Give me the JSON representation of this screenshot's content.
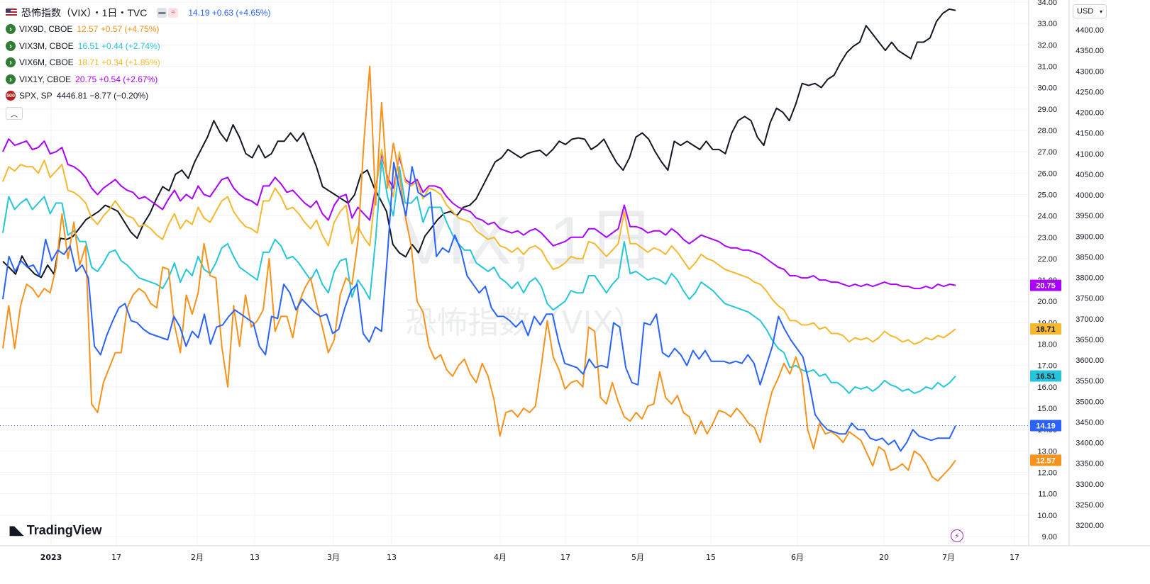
{
  "header": {
    "title": "恐怖指数（VIX）・1日・TVC",
    "main_values": "14.19 +0.63 (+4.65%)",
    "currency": "USD"
  },
  "watermark": {
    "line1": "VIX, 1日",
    "line2": "恐怖指数（VIX）"
  },
  "brand": "TradingView",
  "legend": [
    {
      "name": "VIX9D, CBOE",
      "values": "12.57 +0.57 (+4.75%)",
      "color": "#f7931a"
    },
    {
      "name": "VIX3M, CBOE",
      "values": "16.51 +0.44 (+2.74%)",
      "color": "#26c6da"
    },
    {
      "name": "VIX6M, CBOE",
      "values": "18.71 +0.34 (+1.85%)",
      "color": "#f5b82e"
    },
    {
      "name": "VIX1Y, CBOE",
      "values": "20.75 +0.54 (+2.67%)",
      "color": "#aa00ff"
    },
    {
      "name": "SPX, SP",
      "values": "4446.81 −8.77 (−0.20%)",
      "color": "#131722",
      "icon": "500"
    }
  ],
  "chart_data": {
    "type": "line",
    "x_ticks": [
      "2023",
      "17",
      "2月",
      "13",
      "3月",
      "13",
      "4月",
      "17",
      "5月",
      "15",
      "6月",
      "20",
      "7月",
      "17"
    ],
    "y_left_ticks": [
      "34.00",
      "33.00",
      "32.00",
      "31.00",
      "30.00",
      "29.00",
      "28.00",
      "27.00",
      "26.00",
      "25.00",
      "24.00",
      "23.00",
      "22.00",
      "21.00",
      "20.00",
      "19.00",
      "18.00",
      "17.00",
      "16.00",
      "15.00",
      "14.00",
      "13.00",
      "12.00",
      "11.00",
      "10.00",
      "9.00"
    ],
    "y_right_ticks": [
      "4400.00",
      "4350.00",
      "4300.00",
      "4250.00",
      "4200.00",
      "4150.00",
      "4100.00",
      "4050.00",
      "4000.00",
      "3950.00",
      "3900.00",
      "3850.00",
      "3800.00",
      "3750.00",
      "3700.00",
      "3650.00",
      "3600.00",
      "3550.00",
      "3500.00",
      "3450.00",
      "3400.00",
      "3350.00",
      "3300.00",
      "3250.00",
      "3200.00"
    ],
    "y_left_range": [
      9,
      34
    ],
    "y_right_range": [
      3200,
      4400
    ],
    "last_value_labels": [
      {
        "text": "20.75",
        "value": 20.75,
        "color": "#aa00ff"
      },
      {
        "text": "18.71",
        "value": 18.71,
        "color": "#f5b82e"
      },
      {
        "text": "16.51",
        "value": 16.51,
        "color": "#26c6da"
      },
      {
        "text": "14.19",
        "value": 14.19,
        "color": "#2962ff"
      },
      {
        "text": "12.57",
        "value": 12.57,
        "color": "#f7931a"
      }
    ],
    "series": [
      {
        "name": "VIX",
        "axis": "left",
        "color": "#2962ff",
        "values": [
          20.1,
          22.1,
          21.4,
          21.9,
          21.6,
          21.7,
          21.2,
          22.9,
          21.9,
          22.4,
          22.2,
          22.6,
          21.4,
          21.7,
          21.1,
          17.9,
          17.5,
          18.4,
          19.1,
          19.7,
          19.9,
          19.1,
          19.0,
          18.7,
          18.5,
          18.4,
          18.3,
          18.2,
          19.3,
          18.8,
          17.9,
          18.6,
          18.3,
          19.4,
          18.0,
          18.8,
          18.9,
          19.3,
          19.6,
          19.4,
          19.2,
          19.0,
          17.9,
          17.5,
          19.3,
          19.2,
          20.8,
          20.4,
          19.6,
          20.1,
          19.8,
          19.5,
          19.3,
          19.4,
          18.5,
          18.7,
          19.7,
          20.5,
          20.8,
          18.5,
          18.1,
          18.8,
          18.6,
          22.3,
          26.5,
          25.2,
          24.0,
          26.3,
          25.1,
          24.9,
          25.1,
          22.1,
          22.5,
          22.3,
          23.1,
          22.4,
          21.2,
          20.8,
          20.4,
          20.7,
          19.7,
          19.3,
          19.3,
          19.1,
          18.8,
          19.1,
          18.4,
          19.3,
          18.9,
          19.4,
          19.4,
          18.1,
          17.1,
          17.0,
          16.9,
          16.6,
          17.3,
          16.9,
          17.0,
          16.9,
          19.0,
          18.8,
          16.9,
          16.2,
          16.1,
          19.0,
          18.9,
          19.4,
          17.6,
          17.4,
          17.8,
          17.5,
          17.0,
          17.7,
          17.3,
          17.7,
          17.2,
          17.2,
          17.2,
          17.1,
          17.2,
          17.1,
          17.5,
          17.1,
          16.1,
          17.0,
          17.9,
          19.3,
          18.7,
          18.2,
          17.8,
          17.4,
          16.2,
          14.7,
          14.3,
          14.0,
          13.9,
          13.8,
          13.8,
          14.3,
          14.0,
          14.0,
          13.6,
          13.5,
          13.6,
          13.3,
          13.5,
          13.0,
          13.4,
          14.0,
          13.7,
          13.6,
          13.5,
          13.6,
          13.6,
          13.6,
          14.19
        ]
      },
      {
        "name": "VIX9D, CBOE",
        "axis": "left",
        "color": "#f7931a",
        "values": [
          17.8,
          19.8,
          17.8,
          19.8,
          20.8,
          20.6,
          20.2,
          20.6,
          20.4,
          21.6,
          24.1,
          22.0,
          23.7,
          21.7,
          22.6,
          15.2,
          14.8,
          16.2,
          16.9,
          17.6,
          17.6,
          19.7,
          20.3,
          20.6,
          20.4,
          19.9,
          19.7,
          21.6,
          21.5,
          18.9,
          17.6,
          20.3,
          19.4,
          20.4,
          22.7,
          21.2,
          21.1,
          17.9,
          16.0,
          19.8,
          17.9,
          20.3,
          18.8,
          19.1,
          19.6,
          22.0,
          18.6,
          19.3,
          19.3,
          18.3,
          19.9,
          20.6,
          21.1,
          19.9,
          18.8,
          17.6,
          18.2,
          20.3,
          21.1,
          20.8,
          22.8,
          27.4,
          31.0,
          24.5,
          29.3,
          25.3,
          27.4,
          25.9,
          24.0,
          22.6,
          20.0,
          19.5,
          17.9,
          17.3,
          17.5,
          16.8,
          16.5,
          17.0,
          17.3,
          16.6,
          16.2,
          17.1,
          16.5,
          15.4,
          13.7,
          14.8,
          14.9,
          14.6,
          15.0,
          14.8,
          15.1,
          17.0,
          19.1,
          17.4,
          16.8,
          15.9,
          16.2,
          16.3,
          16.0,
          18.8,
          18.6,
          15.5,
          15.2,
          16.2,
          15.3,
          14.6,
          14.4,
          14.8,
          14.5,
          15.1,
          15.2,
          16.7,
          15.5,
          15.2,
          15.6,
          14.8,
          14.6,
          13.8,
          14.4,
          13.8,
          14.3,
          14.9,
          14.8,
          14.6,
          15.0,
          14.7,
          14.3,
          14.1,
          13.4,
          14.7,
          15.8,
          16.4,
          17.1,
          16.6,
          17.4,
          16.6,
          14.0,
          13.1,
          14.3,
          13.8,
          13.9,
          13.7,
          13.4,
          13.9,
          13.7,
          13.5,
          12.9,
          12.3,
          13.2,
          13.0,
          12.1,
          12.2,
          12.4,
          12.1,
          13.0,
          12.8,
          12.4,
          11.8,
          11.6,
          11.9,
          12.2,
          12.57
        ]
      },
      {
        "name": "VIX3M, CBOE",
        "axis": "left",
        "color": "#26c6da",
        "values": [
          23.2,
          24.9,
          24.3,
          24.6,
          24.8,
          24.3,
          24.6,
          24.9,
          24.1,
          24.6,
          24.6,
          23.1,
          23.3,
          22.8,
          22.8,
          21.6,
          21.4,
          21.8,
          22.3,
          22.4,
          21.9,
          21.7,
          21.4,
          21.1,
          21.0,
          20.9,
          20.8,
          20.6,
          21.1,
          21.8,
          20.9,
          21.5,
          21.2,
          22.1,
          21.5,
          21.3,
          21.8,
          22.5,
          22.7,
          22.1,
          21.6,
          21.4,
          21.2,
          21.0,
          22.3,
          22.3,
          22.9,
          22.6,
          22.0,
          22.1,
          21.8,
          21.4,
          21.0,
          21.5,
          20.8,
          20.4,
          21.4,
          21.9,
          22.0,
          20.2,
          21.0,
          20.6,
          20.1,
          22.9,
          26.6,
          24.9,
          24.0,
          26.3,
          24.6,
          24.6,
          24.9,
          23.7,
          24.4,
          24.4,
          24.4,
          23.7,
          23.1,
          22.7,
          22.4,
          22.4,
          21.8,
          21.6,
          21.4,
          21.6,
          21.1,
          20.9,
          20.6,
          20.9,
          20.4,
          20.9,
          21.1,
          20.7,
          19.9,
          19.6,
          19.8,
          20.0,
          20.5,
          20.4,
          20.4,
          21.2,
          21.2,
          20.8,
          20.4,
          20.8,
          21.1,
          22.8,
          21.3,
          21.4,
          21.2,
          21.0,
          21.1,
          21.0,
          20.8,
          21.3,
          21.0,
          20.5,
          20.1,
          20.4,
          20.9,
          20.7,
          20.5,
          20.2,
          19.9,
          19.8,
          19.7,
          19.6,
          19.5,
          19.3,
          19.1,
          18.7,
          18.2,
          17.8,
          17.6,
          16.9,
          17.0,
          16.8,
          16.7,
          16.8,
          16.5,
          16.6,
          16.2,
          16.2,
          16.0,
          15.7,
          16.0,
          15.9,
          16.0,
          15.8,
          16.0,
          16.3,
          16.1,
          16.0,
          15.8,
          15.9,
          15.7,
          15.8,
          16.0,
          15.9,
          16.2,
          16.0,
          16.2,
          16.51
        ]
      },
      {
        "name": "VIX6M, CBOE",
        "axis": "left",
        "color": "#f5b82e",
        "values": [
          25.6,
          26.3,
          26.1,
          26.4,
          26.3,
          26.3,
          26.0,
          26.6,
          25.8,
          26.1,
          26.4,
          25.2,
          25.1,
          24.9,
          24.6,
          23.9,
          23.6,
          24.0,
          24.3,
          24.7,
          24.3,
          24.0,
          23.9,
          23.5,
          23.6,
          23.4,
          23.1,
          22.9,
          23.6,
          24.1,
          23.4,
          23.8,
          23.6,
          24.4,
          23.9,
          23.7,
          24.2,
          24.7,
          24.9,
          24.2,
          23.8,
          23.5,
          23.4,
          23.2,
          24.7,
          24.7,
          25.3,
          24.9,
          24.3,
          24.4,
          24.1,
          23.7,
          23.4,
          23.8,
          23.1,
          22.6,
          23.7,
          24.2,
          24.5,
          22.7,
          23.5,
          23.0,
          22.6,
          25.2,
          27.1,
          25.7,
          24.9,
          27.0,
          25.6,
          25.4,
          25.6,
          24.8,
          25.3,
          25.2,
          25.0,
          24.5,
          24.2,
          23.9,
          23.8,
          23.7,
          23.3,
          23.1,
          22.9,
          23.0,
          22.6,
          22.5,
          22.3,
          22.5,
          22.2,
          22.5,
          22.6,
          22.4,
          21.9,
          21.5,
          21.6,
          21.8,
          22.1,
          22.0,
          22.0,
          22.8,
          22.7,
          22.4,
          22.1,
          22.4,
          22.7,
          24.2,
          22.7,
          22.7,
          22.5,
          22.3,
          22.5,
          22.4,
          22.2,
          22.6,
          22.3,
          21.9,
          21.5,
          21.8,
          22.2,
          22.0,
          21.9,
          21.7,
          21.5,
          21.4,
          21.3,
          21.2,
          21.1,
          20.9,
          20.8,
          20.5,
          20.1,
          19.8,
          19.6,
          19.1,
          19.1,
          18.9,
          18.9,
          19.0,
          18.7,
          18.8,
          18.5,
          18.5,
          18.4,
          18.1,
          18.3,
          18.2,
          18.3,
          18.1,
          18.3,
          18.6,
          18.4,
          18.3,
          18.1,
          18.2,
          18.0,
          18.1,
          18.3,
          18.2,
          18.4,
          18.3,
          18.5,
          18.71
        ]
      },
      {
        "name": "VIX1Y, CBOE",
        "axis": "left",
        "color": "#aa00ff",
        "values": [
          27.0,
          27.6,
          27.3,
          27.4,
          27.5,
          27.1,
          27.2,
          27.5,
          26.9,
          27.0,
          27.2,
          26.4,
          26.3,
          26.1,
          25.8,
          25.3,
          25.0,
          25.3,
          25.5,
          25.7,
          25.4,
          25.2,
          25.1,
          24.8,
          24.9,
          24.7,
          24.5,
          24.3,
          24.8,
          25.2,
          24.7,
          25.0,
          24.8,
          25.4,
          25.0,
          24.9,
          25.3,
          25.7,
          25.8,
          25.3,
          25.0,
          24.8,
          24.7,
          24.5,
          25.4,
          25.4,
          25.8,
          25.5,
          25.1,
          25.2,
          24.9,
          24.6,
          24.4,
          24.7,
          24.1,
          23.8,
          24.5,
          24.9,
          25.0,
          23.9,
          24.4,
          24.1,
          23.8,
          25.3,
          26.9,
          25.8,
          25.3,
          26.8,
          25.7,
          25.5,
          25.7,
          25.1,
          25.4,
          25.4,
          25.3,
          24.9,
          24.6,
          24.4,
          24.3,
          24.2,
          23.9,
          23.8,
          23.6,
          23.7,
          23.4,
          23.3,
          23.2,
          23.3,
          23.1,
          23.3,
          23.4,
          23.2,
          22.9,
          22.6,
          22.7,
          22.8,
          23.0,
          23.0,
          23.0,
          23.4,
          23.4,
          23.2,
          23.0,
          23.2,
          23.4,
          24.5,
          23.5,
          23.5,
          23.4,
          23.2,
          23.3,
          23.3,
          23.1,
          23.4,
          23.2,
          22.9,
          22.7,
          22.9,
          23.1,
          23.0,
          22.9,
          22.8,
          22.6,
          22.5,
          22.5,
          22.4,
          22.4,
          22.3,
          22.2,
          22.0,
          21.8,
          21.6,
          21.5,
          21.2,
          21.2,
          21.1,
          21.1,
          21.2,
          21.0,
          21.0,
          20.9,
          20.9,
          20.8,
          20.7,
          20.8,
          20.7,
          20.8,
          20.7,
          20.8,
          20.9,
          20.8,
          20.8,
          20.7,
          20.7,
          20.6,
          20.6,
          20.7,
          20.6,
          20.8,
          20.7,
          20.8,
          20.75
        ]
      },
      {
        "name": "SPX, SP",
        "axis": "right",
        "color": "#131722",
        "values": [
          3839,
          3824,
          3808,
          3852,
          3824,
          3808,
          3800,
          3830,
          3808,
          3895,
          3892,
          3900,
          3920,
          3940,
          3950,
          3960,
          3975,
          3968,
          3960,
          3935,
          3910,
          3895,
          3930,
          3955,
          3990,
          4020,
          4010,
          4050,
          4060,
          4040,
          4080,
          4110,
          4140,
          4180,
          4150,
          4130,
          4170,
          4140,
          4100,
          4090,
          4120,
          4090,
          4100,
          4130,
          4130,
          4150,
          4130,
          4150,
          4110,
          4070,
          4020,
          4010,
          4000,
          3990,
          3980,
          4000,
          4050,
          4060,
          4020,
          3990,
          3960,
          3880,
          3860,
          3850,
          3880,
          3860,
          3900,
          3920,
          3940,
          3955,
          3960,
          3950,
          3970,
          3975,
          3990,
          4020,
          4050,
          4080,
          4090,
          4110,
          4100,
          4090,
          4100,
          4105,
          4108,
          4095,
          4110,
          4130,
          4122,
          4135,
          4138,
          4135,
          4110,
          4120,
          4135,
          4105,
          4078,
          4060,
          4090,
          4140,
          4150,
          4135,
          4105,
          4080,
          4060,
          4130,
          4120,
          4130,
          4120,
          4110,
          4130,
          4110,
          4110,
          4100,
          4150,
          4180,
          4190,
          4180,
          4140,
          4120,
          4175,
          4210,
          4200,
          4180,
          4220,
          4270,
          4265,
          4270,
          4260,
          4280,
          4290,
          4320,
          4345,
          4360,
          4370,
          4410,
          4390,
          4370,
          4350,
          4370,
          4350,
          4340,
          4330,
          4370,
          4370,
          4380,
          4420,
          4440,
          4450,
          4446.81
        ]
      }
    ]
  }
}
